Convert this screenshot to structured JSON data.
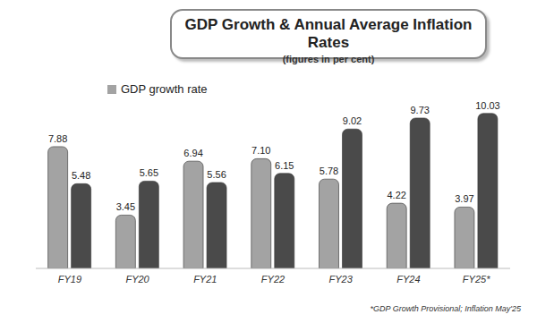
{
  "chart_data": {
    "type": "bar",
    "title": "GDP Growth & Annual Average Inflation Rates",
    "subtitle": "(figures in per cent)",
    "annotation": "*GDP Growth Provisional; Inflation May'25",
    "categories": [
      "FY19",
      "FY20",
      "FY21",
      "FY22",
      "FY23",
      "FY24",
      "FY25*"
    ],
    "series": [
      {
        "name": "GDP growth rate",
        "color": "#a3a3a3",
        "values": [
          7.88,
          3.45,
          6.94,
          7.1,
          5.78,
          4.22,
          3.97
        ],
        "value_labels": [
          "7.88",
          "3.45",
          "6.94",
          "7.10",
          "5.78",
          "4.22",
          "3.97"
        ]
      },
      {
        "color": "#4a4a4a",
        "values": [
          5.48,
          5.65,
          5.56,
          6.15,
          9.02,
          9.73,
          10.03
        ],
        "value_labels": [
          "5.48",
          "5.65",
          "5.56",
          "6.15",
          "9.02",
          "9.73",
          "10.03"
        ]
      }
    ],
    "ylim": [
      0,
      11
    ],
    "grid": false,
    "data_labels": true,
    "tick_labels": "x",
    "legend": "top-left"
  }
}
